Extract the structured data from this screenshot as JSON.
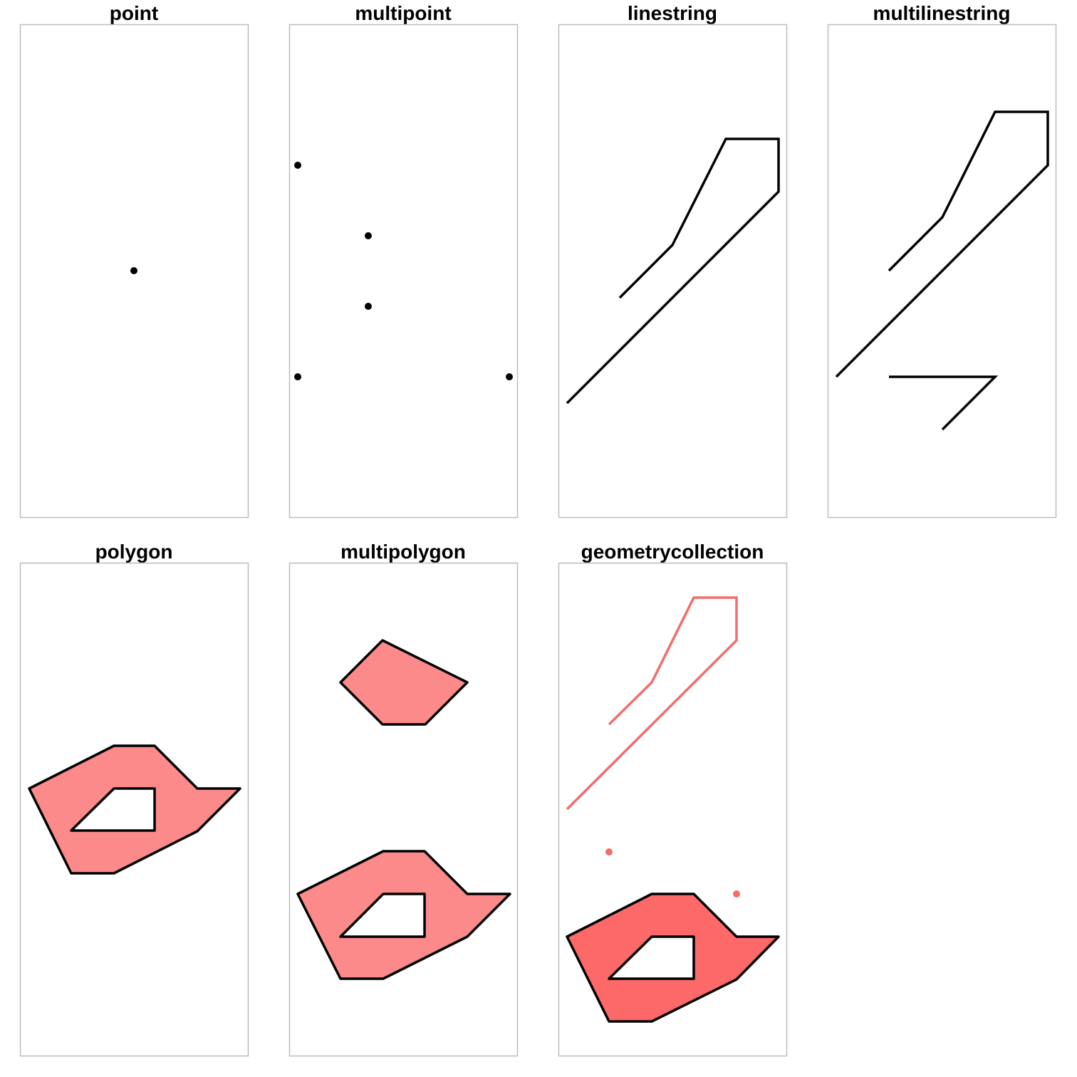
{
  "colors": {
    "frame": "#bdbdbd",
    "stroke": "#000000",
    "fill_light": "#fc8a8a",
    "fill_strong": "#fd6868",
    "collection_line": "#f46c6c",
    "background": "#ffffff"
  },
  "panels": [
    {
      "name": "point",
      "title": "point"
    },
    {
      "name": "multipoint",
      "title": "multipoint"
    },
    {
      "name": "linestring",
      "title": "linestring"
    },
    {
      "name": "multilinestring",
      "title": "multilinestring"
    },
    {
      "name": "polygon",
      "title": "polygon"
    },
    {
      "name": "multipolygon",
      "title": "multipolygon"
    },
    {
      "name": "geometrycollection",
      "title": "geometrycollection"
    }
  ]
}
